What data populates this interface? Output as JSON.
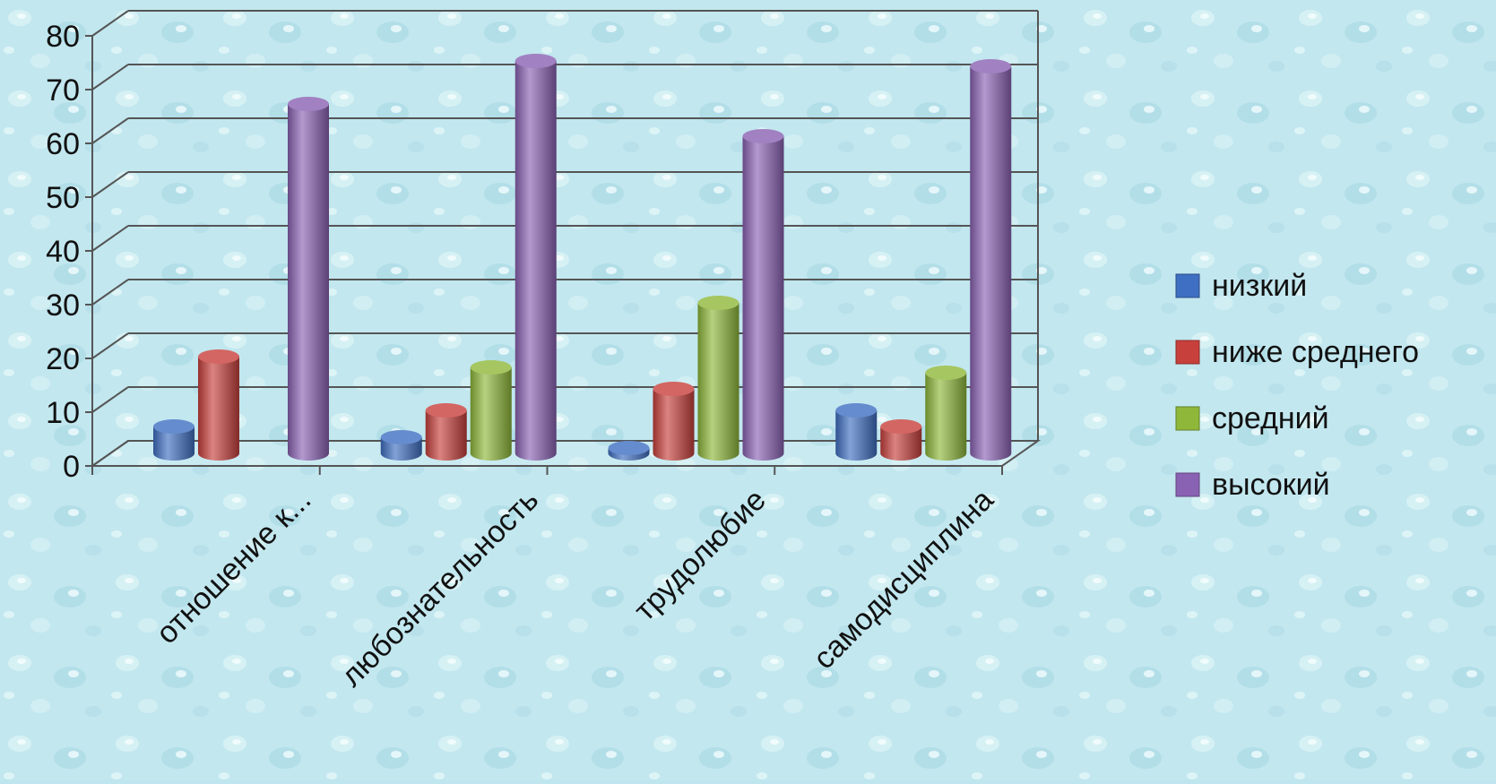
{
  "chart_data": {
    "type": "bar",
    "style": "3d-cylinder",
    "title": "",
    "xlabel": "",
    "ylabel": "",
    "ylim": [
      0,
      80
    ],
    "yticks": [
      0,
      10,
      20,
      30,
      40,
      50,
      60,
      70,
      80
    ],
    "grid": true,
    "legend_position": "right",
    "categories": [
      "отношение к...",
      "любознательность",
      "трудолюбие",
      "самодисциплина"
    ],
    "series": [
      {
        "name": "низкий",
        "color": "#3f6fc2",
        "values": [
          5,
          3,
          1,
          8
        ]
      },
      {
        "name": "ниже среднего",
        "color": "#c8403c",
        "values": [
          18,
          8,
          12,
          5
        ]
      },
      {
        "name": "средний",
        "color": "#8fb83a",
        "values": [
          0,
          16,
          28,
          15
        ]
      },
      {
        "name": "высокий",
        "color": "#8a62b3",
        "values": [
          65,
          73,
          59,
          72
        ]
      }
    ]
  }
}
